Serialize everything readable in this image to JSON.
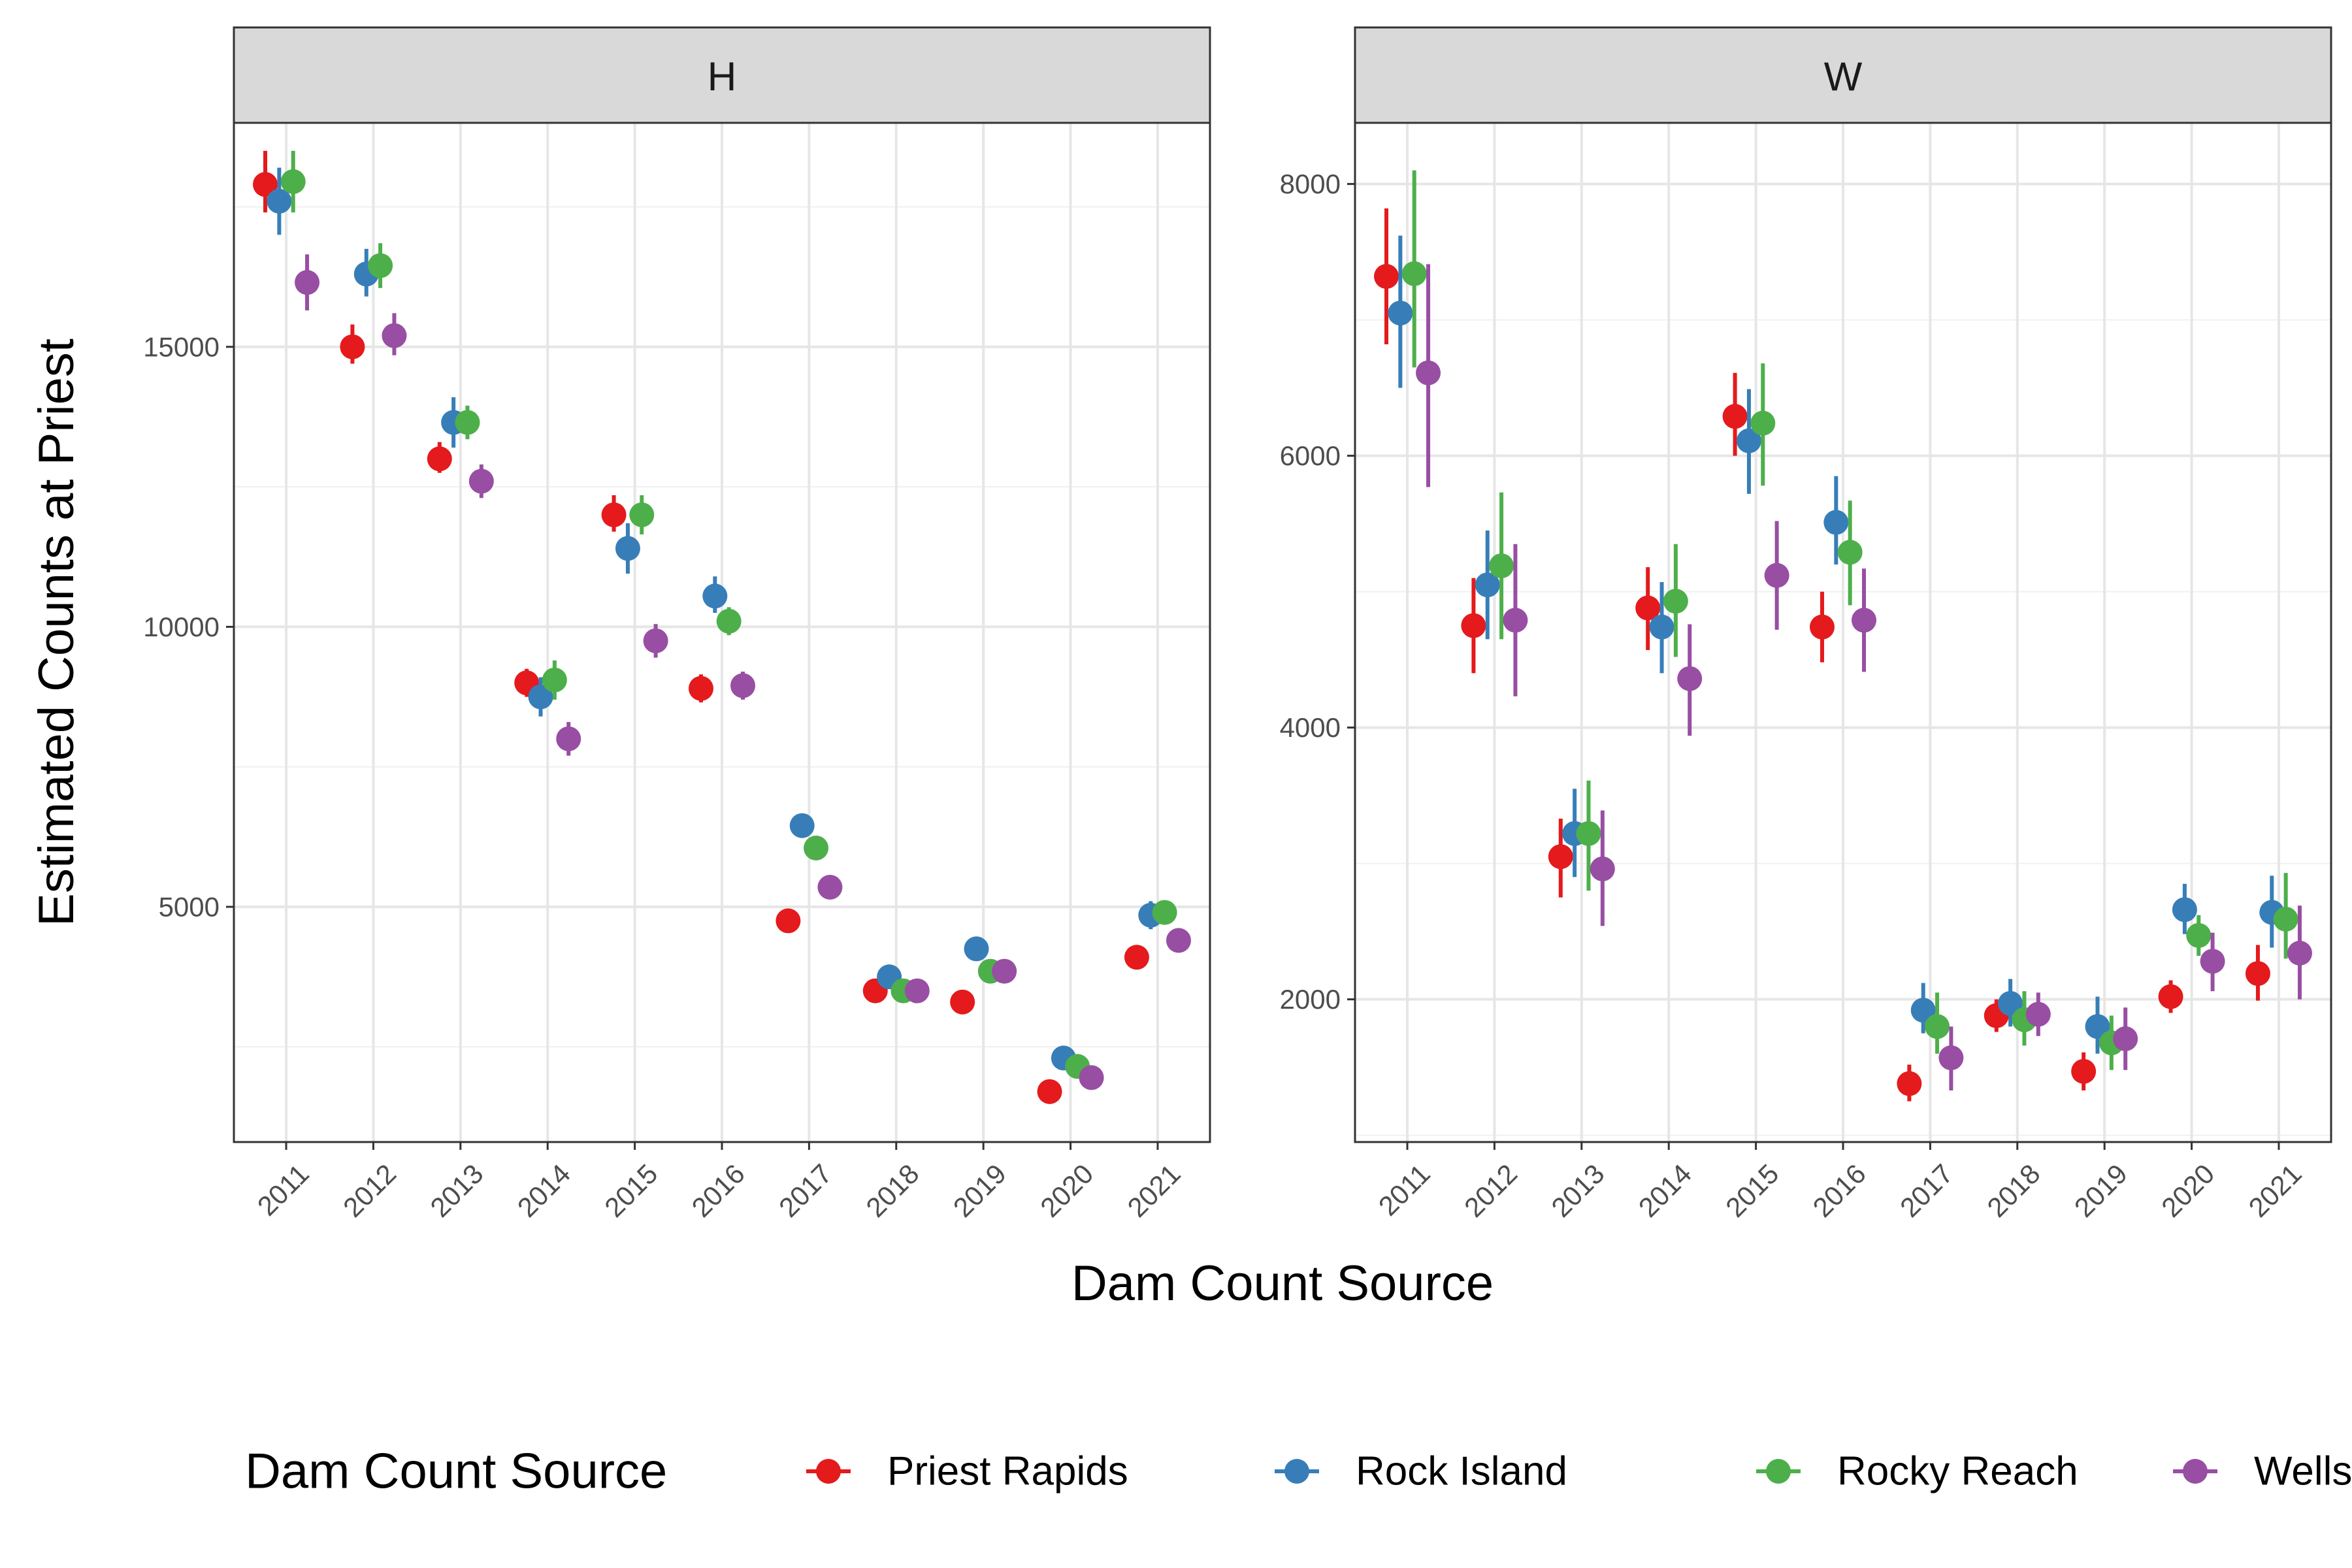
{
  "chart_data": {
    "type": "scatter",
    "title": "",
    "xlabel": "Dam Count Source",
    "ylabel": "Estimated Counts at Priest",
    "legend": {
      "title": "Dam Count Source",
      "position": "bottom"
    },
    "grid": true,
    "categories": [
      "2011",
      "2012",
      "2013",
      "2014",
      "2015",
      "2016",
      "2017",
      "2018",
      "2019",
      "2020",
      "2021"
    ],
    "colors": {
      "Priest Rapids": "#E41A1C",
      "Rock Island": "#377EB8",
      "Rocky Reach": "#4DAF4A",
      "Wells": "#984EA3"
    },
    "panels": [
      {
        "facet": "H",
        "ylim": [
          800,
          19000
        ],
        "yticks": [
          5000,
          10000,
          15000
        ],
        "series": [
          {
            "name": "Priest Rapids",
            "values": [
              17900,
              15000,
              13000,
              9000,
              12000,
              8900,
              4750,
              3500,
              3300,
              1700,
              4100
            ],
            "lower": [
              17400,
              14700,
              12750,
              8750,
              11700,
              8650,
              4600,
              3400,
              3200,
              1600,
              4000
            ],
            "upper": [
              18500,
              15400,
              13300,
              9250,
              12350,
              9150,
              4900,
              3600,
              3400,
              1800,
              4250
            ]
          },
          {
            "name": "Rock Island",
            "values": [
              17600,
              16300,
              13650,
              8750,
              11400,
              10550,
              6450,
              3750,
              4250,
              2300,
              4850
            ],
            "lower": [
              17000,
              15900,
              13200,
              8400,
              10950,
              10250,
              6300,
              3600,
              4050,
              2150,
              4600
            ],
            "upper": [
              18200,
              16750,
              14100,
              9100,
              11850,
              10900,
              6600,
              3900,
              4450,
              2450,
              5100
            ]
          },
          {
            "name": "Rocky Reach",
            "values": [
              17950,
              16450,
              13650,
              9050,
              12000,
              10100,
              6050,
              3500,
              3850,
              2150,
              4900
            ],
            "lower": [
              17400,
              16050,
              13350,
              8700,
              11650,
              9850,
              5900,
              3400,
              3700,
              2050,
              4700
            ],
            "upper": [
              18500,
              16850,
              13950,
              9400,
              12350,
              10350,
              6200,
              3600,
              4000,
              2250,
              5100
            ]
          },
          {
            "name": "Wells",
            "values": [
              16150,
              15200,
              12600,
              8000,
              9750,
              8950,
              5350,
              3500,
              3850,
              1950,
              4400
            ],
            "lower": [
              15650,
              14850,
              12300,
              7700,
              9450,
              8700,
              5200,
              3400,
              3700,
              1850,
              4300
            ],
            "upper": [
              16650,
              15600,
              12900,
              8300,
              10050,
              9200,
              5500,
              3600,
              4000,
              2050,
              4500
            ]
          }
        ]
      },
      {
        "facet": "W",
        "ylim": [
          950,
          8450
        ],
        "yticks": [
          2000,
          4000,
          6000,
          8000
        ],
        "series": [
          {
            "name": "Priest Rapids",
            "values": [
              7320,
              4750,
              3050,
              4880,
              6290,
              4740,
              1380,
              1880,
              1470,
              2020,
              2190
            ],
            "lower": [
              6820,
              4400,
              2750,
              4570,
              6000,
              4480,
              1250,
              1760,
              1330,
              1900,
              1990
            ],
            "upper": [
              7820,
              5100,
              3330,
              5180,
              6610,
              5000,
              1520,
              2000,
              1610,
              2140,
              2400
            ]
          },
          {
            "name": "Rock Island",
            "values": [
              7050,
              5050,
              3220,
              4740,
              6110,
              5510,
              1920,
              1970,
              1800,
              2660,
              2640
            ],
            "lower": [
              6500,
              4650,
              2900,
              4400,
              5720,
              5200,
              1750,
              1800,
              1600,
              2480,
              2380
            ],
            "upper": [
              7620,
              5450,
              3550,
              5070,
              6490,
              5850,
              2120,
              2150,
              2020,
              2850,
              2910
            ]
          },
          {
            "name": "Rocky Reach",
            "values": [
              7340,
              5190,
              3220,
              4930,
              6240,
              5290,
              1800,
              1850,
              1680,
              2470,
              2590
            ],
            "lower": [
              6650,
              4650,
              2800,
              4520,
              5780,
              4900,
              1600,
              1660,
              1480,
              2320,
              2300
            ],
            "upper": [
              8100,
              5730,
              3610,
              5350,
              6680,
              5670,
              2050,
              2060,
              1880,
              2620,
              2930
            ]
          },
          {
            "name": "Wells",
            "values": [
              6610,
              4790,
              2960,
              4360,
              5120,
              4790,
              1570,
              1890,
              1710,
              2280,
              2340
            ],
            "lower": [
              5770,
              4230,
              2540,
              3940,
              4720,
              4410,
              1330,
              1730,
              1480,
              2060,
              2000
            ],
            "upper": [
              7410,
              5350,
              3390,
              4760,
              5520,
              5170,
              1800,
              2050,
              1940,
              2490,
              2690
            ]
          }
        ]
      }
    ]
  }
}
